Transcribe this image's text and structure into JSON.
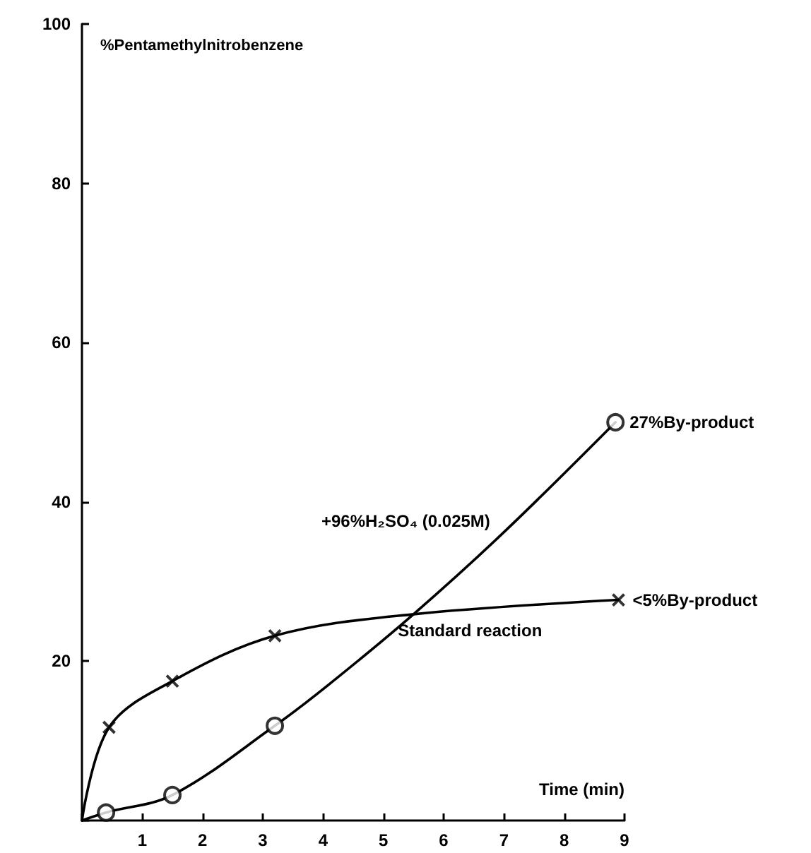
{
  "chart_data": {
    "type": "line",
    "xlabel": "Time (min)",
    "ylabel": "%Pentamethylnitrobenzene",
    "xlim": [
      0,
      9
    ],
    "ylim": [
      0,
      100
    ],
    "xticks": [
      {
        "value": 0,
        "label": null
      },
      1,
      2,
      3,
      4,
      5,
      6,
      7,
      8,
      9
    ],
    "yticks": [
      {
        "value": 0,
        "label": null
      },
      20,
      40,
      60,
      80,
      100
    ],
    "grid": false,
    "series": [
      {
        "name": "Standard reaction",
        "color": "#000000",
        "marker": "none",
        "x": [
          0,
          0.45,
          1.5,
          3.2,
          5.5,
          8.9
        ],
        "values": [
          0,
          11.7,
          17.5,
          23.2,
          25.9,
          27.7
        ]
      },
      {
        "type": "scatter",
        "color": "#000000",
        "marker": "cross",
        "x": [
          0.45,
          1.5,
          3.2,
          8.9
        ],
        "values": [
          11.7,
          17.5,
          23.2,
          27.7
        ]
      },
      {
        "name": "+96%H₂SO₄ (0.025M)",
        "color": "#000000",
        "marker": "none",
        "x": [
          0,
          0.4,
          1.5,
          3.2,
          4.1,
          5.5,
          7,
          8.85
        ],
        "values": [
          0,
          1,
          3.2,
          11.9,
          17.1,
          25.9,
          36.2,
          50
        ]
      },
      {
        "type": "scatter",
        "color": "#000000",
        "marker": "circle",
        "x": [
          0.4,
          1.5,
          3.2,
          8.85
        ],
        "values": [
          1,
          3.2,
          11.9,
          50
        ]
      }
    ],
    "annotations": [
      {
        "text": "27%By-product",
        "x": 8.85,
        "y": 50
      },
      {
        "text": "<5%By-product",
        "x": 8.9,
        "y": 27.7
      }
    ]
  }
}
